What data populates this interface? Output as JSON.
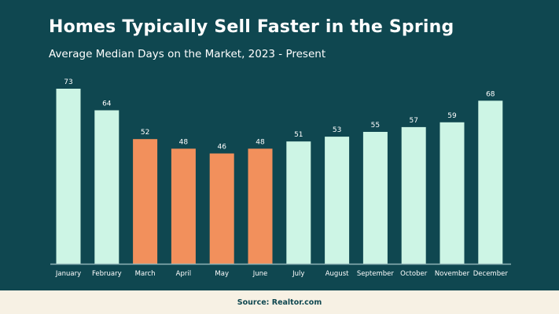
{
  "title": "Homes Typically Sell Faster in the Spring",
  "subtitle": "Average Median Days on the Market, 2023 - Present",
  "source": "Source: Realtor.com",
  "colors": {
    "background": "#0f4750",
    "bar_default": "#cdf5e5",
    "bar_highlight": "#f2905c",
    "axis": "#8fb3b6",
    "label": "#ffffff",
    "footer_bg": "#f7f1e4"
  },
  "chart_data": {
    "type": "bar",
    "categories": [
      "January",
      "February",
      "March",
      "April",
      "May",
      "June",
      "July",
      "August",
      "September",
      "October",
      "November",
      "December"
    ],
    "values": [
      73,
      64,
      52,
      48,
      46,
      48,
      51,
      53,
      55,
      57,
      59,
      68
    ],
    "highlighted": [
      "March",
      "April",
      "May",
      "June"
    ],
    "title": "Homes Typically Sell Faster in the Spring",
    "subtitle": "Average Median Days on the Market, 2023 - Present",
    "xlabel": "",
    "ylabel": "",
    "ylim": [
      0,
      73
    ],
    "data_labels": true,
    "grid": false,
    "legend": "none"
  }
}
